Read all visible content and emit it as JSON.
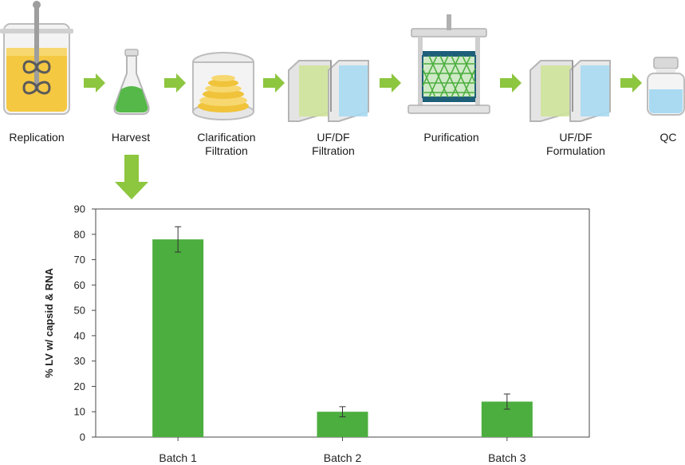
{
  "workflow": {
    "steps": [
      {
        "id": "replication",
        "lines": [
          "Replication"
        ]
      },
      {
        "id": "harvest",
        "lines": [
          "Harvest"
        ]
      },
      {
        "id": "clarification",
        "lines": [
          "Clarification",
          "Filtration"
        ]
      },
      {
        "id": "ufdf-filtration",
        "lines": [
          "UF/DF",
          "Filtration"
        ]
      },
      {
        "id": "purification",
        "lines": [
          "Purification"
        ]
      },
      {
        "id": "ufdf-formulation",
        "lines": [
          "UF/DF",
          "Formulation"
        ]
      },
      {
        "id": "qc",
        "lines": [
          "QC"
        ]
      }
    ],
    "arrow_color": "#8dc63f",
    "highlight_step": "harvest"
  },
  "colors": {
    "bar": "#4cae3f",
    "liquid_yellow": "#f5c842",
    "liquid_green": "#55b848",
    "liquid_blue": "#a9daf2",
    "membrane_green": "#cfe39a"
  },
  "chart_data": {
    "type": "bar",
    "title": "",
    "xlabel": "",
    "ylabel": "% LV w/ capsid & RNA",
    "categories": [
      "Batch 1",
      "Batch 2",
      "Batch 3"
    ],
    "values": [
      78,
      10,
      14
    ],
    "error": [
      5,
      2,
      3
    ],
    "ylim": [
      0,
      90
    ],
    "yticks": [
      0,
      10,
      20,
      30,
      40,
      50,
      60,
      70,
      80,
      90
    ],
    "grid": false,
    "legend": "none"
  }
}
